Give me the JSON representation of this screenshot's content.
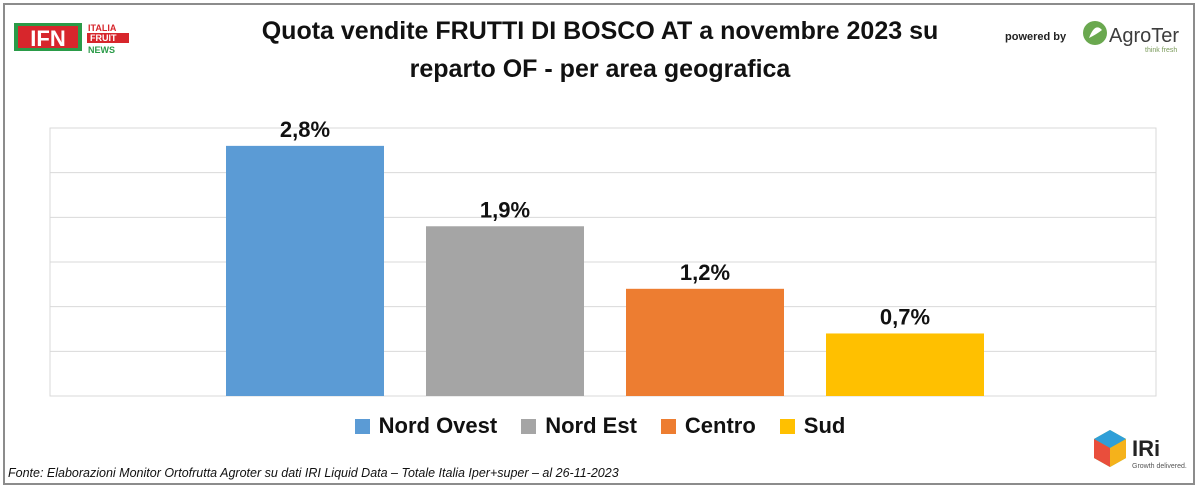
{
  "header": {
    "title_line1": "Quota vendite FRUTTI DI BOSCO AT a novembre 2023 su",
    "title_line2": "reparto OF - per area geografica",
    "powered_by": "powered by",
    "agroter_brand": "AgroTer",
    "agroter_tagline": "think fresh",
    "ifn_letters": "IFN",
    "ifn_line1": "ITALIA",
    "ifn_line2": "FRUIT",
    "ifn_line3": "NEWS"
  },
  "footer": {
    "source": "Fonte: Elaborazioni Monitor Ortofrutta Agroter su dati IRI Liquid Data – Totale Italia Iper+super –  al 26-11-2023",
    "iri_brand": "IRi",
    "iri_tagline": "Growth delivered."
  },
  "chart_data": {
    "type": "bar",
    "title": "Quota vendite FRUTTI DI BOSCO AT a novembre 2023 su reparto OF - per area geografica",
    "categories": [
      "Nord Ovest",
      "Nord Est",
      "Centro",
      "Sud"
    ],
    "values": [
      2.8,
      1.9,
      1.2,
      0.7
    ],
    "data_labels": [
      "2,8%",
      "1,9%",
      "1,2%",
      "0,7%"
    ],
    "colors": [
      "#5b9bd5",
      "#a5a5a5",
      "#ed7d31",
      "#ffc000"
    ],
    "ylim": [
      0,
      3.0
    ],
    "grid": true,
    "legend_position": "bottom"
  }
}
